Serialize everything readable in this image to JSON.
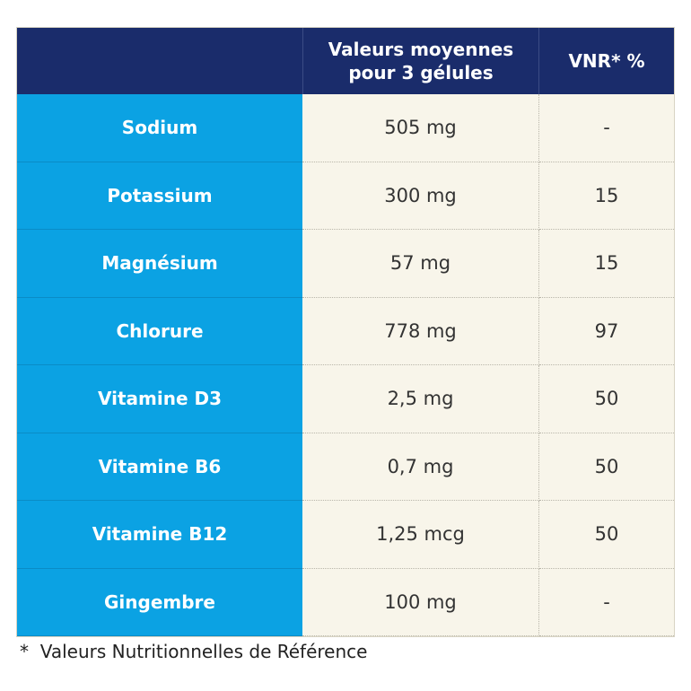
{
  "header": {
    "columns": [
      [
        "Valeurs moyennes",
        "pour 3 gélules"
      ],
      [
        "VNR* %"
      ]
    ]
  },
  "table": {
    "rows": [
      [
        "Sodium",
        "505 mg",
        "-"
      ],
      [
        "Potassium",
        "300 mg",
        "15"
      ],
      [
        "Magnésium",
        "57 mg",
        "15"
      ],
      [
        "Chlorure",
        "778 mg",
        "97"
      ],
      [
        "Vitamine D3",
        "2,5 mg",
        "50"
      ],
      [
        "Vitamine B6",
        "0,7 mg",
        "50"
      ],
      [
        "Vitamine B12",
        "1,25 mcg",
        "50"
      ],
      [
        "Gingembre",
        "100 mg",
        "-"
      ]
    ]
  },
  "footnote": "*  Valeurs Nutritionnelles de Référence"
}
